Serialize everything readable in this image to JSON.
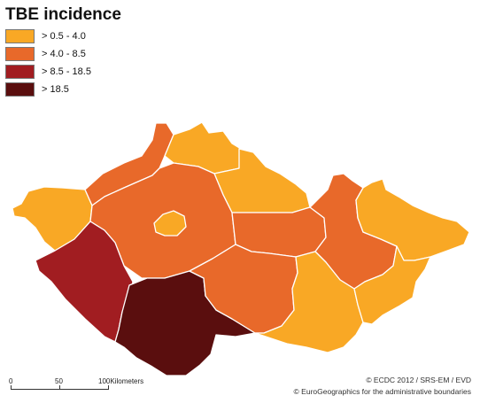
{
  "title": "TBE incidence",
  "legend": [
    {
      "label": "> 0.5 - 4.0",
      "color": "#F9A825"
    },
    {
      "label": "> 4.0 - 8.5",
      "color": "#E8692A"
    },
    {
      "label": "> 8.5 - 18.5",
      "color": "#A11D21"
    },
    {
      "label": "> 18.5",
      "color": "#5A0E0E"
    }
  ],
  "scale": {
    "tick_0": "0",
    "tick_50": "50",
    "tick_100": "100",
    "unit": "Kilometers"
  },
  "credits": {
    "line1": "© ECDC 2012 / SRS-EM / EVD",
    "line2": "© EuroGeographics for the administrative boundaries"
  }
}
